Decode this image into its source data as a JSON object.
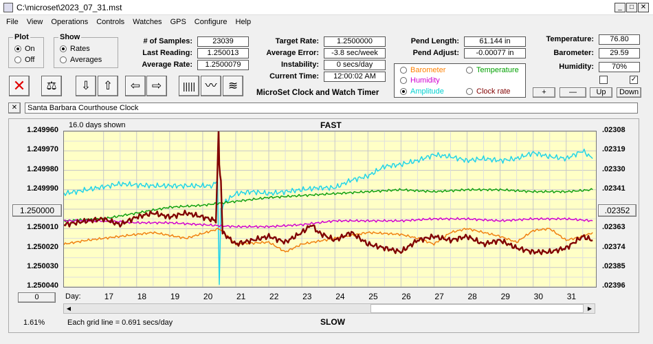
{
  "window": {
    "title": "C:\\microset\\2023_07_31.mst"
  },
  "menu": [
    "File",
    "View",
    "Operations",
    "Controls",
    "Watches",
    "GPS",
    "Configure",
    "Help"
  ],
  "plot_group": {
    "title": "Plot",
    "on": "On",
    "off": "Off",
    "selected": "On"
  },
  "show_group": {
    "title": "Show",
    "rates": "Rates",
    "averages": "Averages",
    "selected": "Rates"
  },
  "stats": {
    "samples_label": "# of Samples:",
    "samples": "23039",
    "last_label": "Last Reading:",
    "last": "1.250013",
    "avg_label": "Average Rate:",
    "avg": "1.2500079",
    "target_label": "Target Rate:",
    "target": "1.2500000",
    "err_label": "Average Error:",
    "err": "-3.8 sec/week",
    "inst_label": "Instability:",
    "inst": "0 secs/day",
    "time_label": "Current Time:",
    "time": "12:00:02 AM",
    "pend_len_label": "Pend Length:",
    "pend_len": "61.144 in",
    "pend_adj_label": "Pend Adjust:",
    "pend_adj": "-0.00077 in",
    "temp_label": "Temperature:",
    "temp": "76.80",
    "baro_label": "Barometer:",
    "baro": "29.59",
    "hum_label": "Humidity:",
    "hum": "70%"
  },
  "app_title": "MicroSet Clock and Watch Timer",
  "series_options": [
    {
      "label": "Barometer",
      "color": "#ff8000",
      "selected": false
    },
    {
      "label": "Temperature",
      "color": "#00a000",
      "selected": false
    },
    {
      "label": "Humidity",
      "color": "#d000d0",
      "selected": false
    },
    {
      "label": "Amplitude",
      "color": "#00d0d0",
      "selected": true
    },
    {
      "label": "Clock rate",
      "color": "#800000",
      "selected": false
    }
  ],
  "adjust_buttons": {
    "plus": "+",
    "minus": "—",
    "up": "Up",
    "down": "Down"
  },
  "checkbox_right": "✓",
  "clock_name": "Santa Barbara Courthouse Clock",
  "close_x": "✕",
  "chart_data": {
    "type": "line",
    "days_shown": "16.0 days shown",
    "top_label": "FAST",
    "bottom_label": "SLOW",
    "day_label": "Day:",
    "grid_note": "Each grid line = 0.691 secs/day",
    "percent": "1.61%",
    "left_box": "1.250000",
    "right_box": ".02352",
    "zero_box": "0",
    "y_left_ticks": [
      "1.249960",
      "1.249970",
      "1.249980",
      "1.249990",
      "1.250000",
      "1.250010",
      "1.250020",
      "1.250030",
      "1.250040"
    ],
    "y_right_ticks": [
      ".02308",
      ".02319",
      ".02330",
      ".02341",
      ".02352",
      ".02363",
      ".02374",
      ".02385",
      ".02396"
    ],
    "x_ticks": [
      "17",
      "18",
      "19",
      "20",
      "21",
      "22",
      "23",
      "24",
      "25",
      "26",
      "27",
      "28",
      "29",
      "30",
      "31"
    ],
    "xlim": [
      15.8,
      31.9
    ],
    "ylim": [
      1.24996,
      1.25004
    ],
    "series": [
      {
        "name": "Amplitude",
        "color": "#22d4e8",
        "x": [
          15.8,
          16.5,
          17.5,
          18.5,
          19.5,
          20.3,
          20.45,
          20.5,
          20.55,
          20.7,
          21.0,
          21.5,
          22.0,
          22.5,
          23.0,
          23.5,
          24.0,
          24.5,
          25.0,
          25.5,
          26.0,
          26.5,
          27.0,
          27.5,
          28.0,
          28.5,
          29.0,
          29.5,
          30.0,
          30.5,
          31.0,
          31.5,
          31.8
        ],
        "y": [
          1.249992,
          1.24999,
          1.249987,
          1.249988,
          1.249988,
          1.249988,
          1.249985,
          1.25004,
          1.25,
          1.249996,
          1.249992,
          1.249991,
          1.249992,
          1.249991,
          1.24999,
          1.249989,
          1.249989,
          1.249985,
          1.249983,
          1.249978,
          1.249977,
          1.249975,
          1.249972,
          1.249973,
          1.249975,
          1.249974,
          1.249975,
          1.249974,
          1.249971,
          1.249973,
          1.249974,
          1.24997,
          1.249974
        ]
      },
      {
        "name": "Temperature",
        "color": "#10a010",
        "x": [
          15.8,
          17,
          18,
          19,
          20,
          21,
          22,
          23,
          24,
          25,
          26,
          27,
          28,
          29,
          30,
          31,
          31.8
        ],
        "y": [
          1.250006,
          1.250005,
          1.250002,
          1.249999,
          1.249998,
          1.249996,
          1.249994,
          1.249993,
          1.249992,
          1.249991,
          1.24999,
          1.249991,
          1.24999,
          1.24999,
          1.249991,
          1.249991,
          1.24999
        ]
      },
      {
        "name": "Humidity",
        "color": "#d000d0",
        "x": [
          15.8,
          17,
          18,
          19,
          20,
          21,
          22,
          23,
          24,
          25,
          26,
          27,
          28,
          29,
          30,
          31,
          31.8
        ],
        "y": [
          1.250006,
          1.250006,
          1.250007,
          1.250007,
          1.250008,
          1.250009,
          1.250009,
          1.250008,
          1.250006,
          1.250006,
          1.250006,
          1.250005,
          1.250005,
          1.250006,
          1.250005,
          1.250005,
          1.250006
        ]
      },
      {
        "name": "Barometer",
        "color": "#f08010",
        "x": [
          15.8,
          16.5,
          17.5,
          18.5,
          19.5,
          20.5,
          21.0,
          22.0,
          22.5,
          23.0,
          24.0,
          25.0,
          26.0,
          26.5,
          27.0,
          27.5,
          28.0,
          28.5,
          29.0,
          29.5,
          30.0,
          30.5,
          31.0,
          31.5,
          31.8
        ],
        "y": [
          1.250018,
          1.250016,
          1.250014,
          1.250012,
          1.250015,
          1.25001,
          1.250018,
          1.250017,
          1.250022,
          1.250018,
          1.250015,
          1.250012,
          1.250013,
          1.250015,
          1.250018,
          1.250012,
          1.25001,
          1.250012,
          1.250014,
          1.250017,
          1.250011,
          1.25001,
          1.250016,
          1.250014,
          1.250012
        ]
      },
      {
        "name": "Clock rate",
        "color": "#800000",
        "x": [
          15.8,
          16.5,
          17.0,
          17.5,
          18.0,
          18.5,
          19.0,
          19.5,
          20.0,
          20.4,
          20.48,
          20.5,
          20.55,
          20.6,
          21.0,
          21.5,
          22.0,
          22.5,
          23.0,
          23.3,
          23.5,
          24.0,
          24.5,
          25.0,
          25.5,
          26.0,
          26.5,
          27.0,
          27.5,
          28.0,
          28.5,
          29.0,
          29.5,
          30.0,
          30.5,
          31.0,
          31.5,
          31.8
        ],
        "y": [
          1.250008,
          1.250006,
          1.250005,
          1.250008,
          1.250004,
          1.250002,
          1.250004,
          1.250002,
          1.250004,
          1.250006,
          1.24996,
          1.249978,
          1.249985,
          1.250012,
          1.250018,
          1.250016,
          1.250014,
          1.250017,
          1.250012,
          1.250008,
          1.250012,
          1.250016,
          1.250012,
          1.250018,
          1.25002,
          1.250022,
          1.250016,
          1.250014,
          1.250016,
          1.250014,
          1.250018,
          1.250016,
          1.25002,
          1.250022,
          1.250022,
          1.25002,
          1.250014,
          1.250016
        ]
      }
    ]
  }
}
